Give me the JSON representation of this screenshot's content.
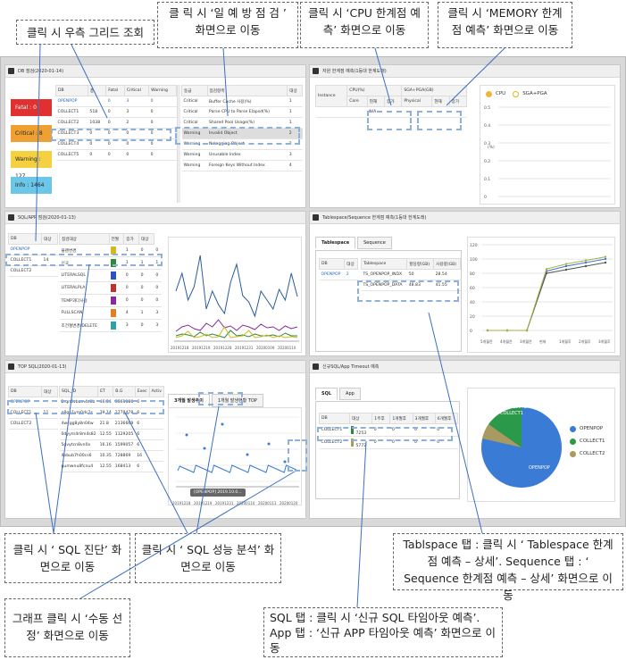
{
  "callouts": {
    "grid_click": "클릭 시 우측 그리드 조회",
    "daily_check": "클 릭 시 ‘일 예 방 점 검 ’ 화면으로 이동",
    "cpu_forecast": "클릭 시 ‘CPU 한계점 예측’ 화면으로 이동",
    "memory_forecast": "클릭 시 ‘MEMORY 한계점 예측’ 화면으로 이동",
    "sql_diag": "클릭 시 ‘ SQL 진단’ 화면으로 이동",
    "sql_perf": "클릭 시 ‘ SQL 성능 분석’ 화면으로 이동",
    "manual_select": "그래프 클릭 시 ‘수동 선정’ 화면으로 이동",
    "tablespace": "Tablspace 탭 : 클릭 시 ‘ Tablespace 한계점 예측 – 상세’. Sequence 탭 : ‘ Sequence 한계점 예측 – 상세’ 화면으로 이동",
    "sql_app": "SQL 탭 : 클릭 시 ‘신규 SQL 타임아웃 예측’. App 탭 : ‘신규 APP 타임아웃 예측’ 화면으로 이동"
  },
  "db_check": {
    "title": "DB 점검(2020-01-14)",
    "summary": [
      {
        "label": "Fatal : 0",
        "color": "#e03030"
      },
      {
        "label": "Critical : 8",
        "color": "#f0a030"
      },
      {
        "label": "Warning : 127",
        "color": "#f5d040"
      },
      {
        "label": "Info : 1464",
        "color": "#6cc6e8"
      }
    ],
    "columns": [
      "DB",
      "총",
      "Fatal",
      "Critical",
      "Warning"
    ],
    "rows": [
      [
        "OPENPOP",
        "",
        "0",
        "3",
        "0"
      ],
      [
        "COLLECT1",
        "518",
        "0",
        "3",
        "0"
      ],
      [
        "COLLECT2",
        "1038",
        "0",
        "2",
        "0"
      ],
      [
        "COLLECT3",
        "0",
        "0",
        "0",
        "0"
      ],
      [
        "COLLECT4",
        "0",
        "0",
        "0",
        "0"
      ],
      [
        "COLLECT5",
        "0",
        "0",
        "0",
        "0"
      ]
    ],
    "detail_columns": [
      "등급",
      "점검항목",
      "대상"
    ],
    "detail_rows": [
      [
        "Critical",
        "Buffer Cache 사용(%)",
        "1"
      ],
      [
        "Critical",
        "Parse CPU to Parse Elapsd(%)",
        "1"
      ],
      [
        "Critical",
        "Shared Pool Usage(%)",
        "1"
      ],
      [
        "Warning",
        "Invalid Object",
        "2"
      ],
      [
        "Warning",
        "Nologging Object",
        "2"
      ],
      [
        "Warning",
        "Unusable Index",
        "3"
      ],
      [
        "Warning",
        "Foreign Keys Without Index",
        "4"
      ]
    ]
  },
  "resource": {
    "title": "자원 한계점 예측(1등대 한계도래)",
    "head1": [
      "Instance",
      "CPU(%)",
      "SGA+PGA(GB)"
    ],
    "head2": [
      "Core",
      "현재",
      "증가",
      "Physical",
      "현재",
      "증가"
    ],
    "na": "N/A",
    "legend": [
      "CPU",
      "SGA+PGA"
    ],
    "yticks": [
      "0.5",
      "0.4",
      "0.3",
      "0.2",
      "0.1",
      "0"
    ],
    "ylabel": "(%)"
  },
  "sql_app": {
    "title": "SQL/APP 점검(2020-01-13)",
    "columns": [
      "DB",
      "대상"
    ],
    "rows": [
      [
        "OPENPOP",
        ""
      ],
      [
        "COLLECT1",
        "14"
      ],
      [
        "COLLECT2",
        ""
      ]
    ],
    "item_columns": [
      "점검대상",
      "전월",
      "증가",
      "대상"
    ],
    "items": [
      {
        "name": "플랜변경",
        "color": "#d4b820",
        "v": [
          "1",
          "0",
          "0"
        ]
      },
      {
        "name": "신규",
        "color": "#2a8a3a",
        "v": [
          "1",
          "1",
          "1"
        ]
      },
      {
        "name": "LITERALSQL",
        "color": "#3050c0",
        "v": [
          "0",
          "0",
          "0"
        ]
      },
      {
        "name": "LITERALPLA",
        "color": "#c03030",
        "v": [
          "0",
          "0",
          "0"
        ]
      },
      {
        "name": "TEMP과다사용",
        "color": "#8a2a9a",
        "v": [
          "0",
          "0",
          "0"
        ]
      },
      {
        "name": "FULLSCAN",
        "color": "#e08020",
        "v": [
          "4",
          "1",
          "3"
        ]
      },
      {
        "name": "조건절변경(DELETE",
        "color": "#30a0a0",
        "v": [
          "3",
          "0",
          "3"
        ]
      }
    ],
    "xticks": [
      "20191218",
      "20191219",
      "20191228",
      "20191231",
      "20200109",
      "20200110"
    ]
  },
  "tablespace": {
    "title": "Tablespace/Sequence 한계점 예측(1등대 한계도래)",
    "tabs": [
      "Tablespace",
      "Sequence"
    ],
    "columns": [
      "DB",
      "대상"
    ],
    "rows": [
      [
        "OPENPOP",
        "2"
      ]
    ],
    "ts_columns": [
      "Tablespace",
      "할당량(GB)",
      "사용량(GB)"
    ],
    "ts_rows": [
      [
        "TS_OPENPOP_INDX",
        "50",
        "28.54"
      ],
      [
        "TS_OPENPOP_DATA",
        "48.83",
        "41.55"
      ]
    ],
    "yticks": [
      "120",
      "100",
      "80",
      "60",
      "40",
      "20",
      "0"
    ],
    "xticks": [
      "5개월전",
      "4개월전",
      "3개월전",
      "현재",
      "1개월후",
      "2개월후",
      "3개월후"
    ]
  },
  "top_sql": {
    "title": "TOP SQL(2020-01-13)",
    "columns": [
      "DB",
      "대상"
    ],
    "rows": [
      [
        "OPENPOP",
        ""
      ],
      [
        "COLLECT1",
        "11"
      ],
      [
        "COLLECT2",
        ""
      ]
    ],
    "sql_columns": [
      "SQL_ID",
      "ET",
      "B.G",
      "Exec",
      "Activ"
    ],
    "sql_rows": [
      [
        "2rqn6vbum4c0b",
        "46.54",
        "3561086",
        "6",
        ""
      ],
      [
        "a8gn1ym0dc2s",
        "39.14",
        "2778478",
        "6",
        ""
      ],
      [
        "4wcgg8y8n04w",
        "21.8",
        "2136669",
        "6",
        ""
      ],
      [
        "0dyym4r8m4s82",
        "12.55",
        "1129205",
        "6",
        ""
      ],
      [
        "5gvytcn8vn0x",
        "16.16",
        "1599057",
        "6",
        ""
      ],
      [
        "4ebub7h00cs6",
        "10.35",
        "728869",
        "16",
        ""
      ],
      [
        "gumwnu8fcnu4",
        "12.55",
        "168413",
        "6",
        ""
      ]
    ],
    "tabs": [
      "3개월 발생추이",
      "1개월 발생현황 TOP"
    ],
    "tooltip": "[OPENPOP] 2019.10.0...",
    "xticks": [
      "20191218",
      "20191219",
      "20191231",
      "20200110",
      "20200113",
      "20200120"
    ]
  },
  "timeout": {
    "title": "신규SQL/App Timeout 예측",
    "tabs": [
      "SQL",
      "App"
    ],
    "columns": [
      "DB",
      "대상",
      "1주후",
      "1개월후",
      "3개월후",
      "6개월후"
    ],
    "rows": [
      {
        "db": "COLLECT1",
        "color": "#2a8a3a",
        "v": [
          "7253",
          "0",
          "0",
          "0",
          "0"
        ]
      },
      {
        "db": "COLLECT2",
        "color": "#a89a60",
        "v": [
          "5772",
          "0",
          "0",
          "0",
          "0"
        ]
      }
    ],
    "pie_legend": [
      {
        "name": "OPENPOP",
        "color": "#3a7bd5"
      },
      {
        "name": "COLLECT1",
        "color": "#2a9a4a"
      },
      {
        "name": "COLLECT2",
        "color": "#a89a60"
      }
    ],
    "pie_labels": [
      "COLLECT2",
      "COLLECT1",
      "OPENPOP"
    ]
  }
}
